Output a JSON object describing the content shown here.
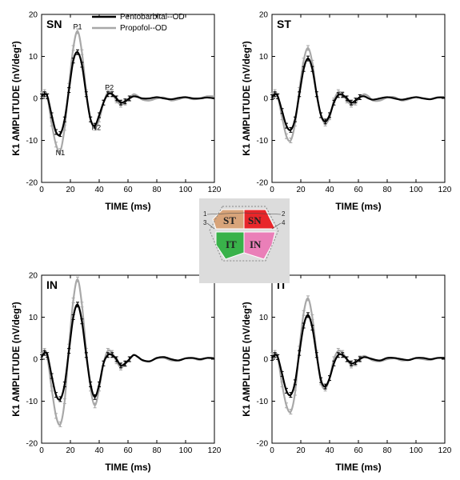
{
  "legend": {
    "entries": [
      {
        "name": "Pentobarbital--OD",
        "color": "#000000"
      },
      {
        "name": "Propofol--OD",
        "color": "#a8a8a8"
      }
    ]
  },
  "inset": {
    "regions": [
      {
        "label": "ST",
        "color": "#d8a47a"
      },
      {
        "label": "SN",
        "color": "#e8262a"
      },
      {
        "label": "IT",
        "color": "#39b24a"
      },
      {
        "label": "IN",
        "color": "#ea7fb8"
      }
    ],
    "numbers": [
      "1",
      "2",
      "3",
      "4"
    ]
  },
  "chart_data": [
    {
      "type": "line",
      "title": "SN",
      "xlabel": "TIME (ms)",
      "ylabel": "K1 AMPLITUDE (nV/deg²)",
      "xlim": [
        0,
        120
      ],
      "ylim": [
        -20,
        20
      ],
      "xticks": [
        "0",
        "20",
        "40",
        "60",
        "80",
        "100",
        "120"
      ],
      "yticks": [
        "-20",
        "-10",
        "0",
        "10",
        "20"
      ],
      "legend": "top-right",
      "annotations": [
        {
          "text": "P1",
          "x": 25,
          "y": 16.5
        },
        {
          "text": "N1",
          "x": 13,
          "y": -13.5
        },
        {
          "text": "N2",
          "x": 38,
          "y": -7.5
        },
        {
          "text": "P2",
          "x": 47,
          "y": 2
        }
      ],
      "x": [
        0,
        2,
        4,
        7,
        10,
        13,
        16,
        19,
        22,
        25,
        28,
        31,
        34,
        37,
        40,
        43,
        46,
        49,
        52,
        55,
        58,
        61,
        64,
        67,
        70,
        75,
        80,
        85,
        90,
        95,
        100,
        105,
        110,
        115,
        120
      ],
      "series": [
        {
          "name": "Pentobarbital--OD",
          "values": [
            0.5,
            1,
            0.5,
            -4,
            -8,
            -8.5,
            -5,
            2,
            9,
            11,
            8,
            1,
            -5,
            -6.5,
            -4,
            -1,
            1,
            1,
            0,
            -1,
            -0.7,
            0,
            0.5,
            0.3,
            0,
            0,
            0.3,
            0,
            -0.2,
            0.1,
            0.3,
            0,
            0,
            0.2,
            0
          ]
        },
        {
          "name": "Propofol--OD",
          "values": [
            1,
            1.5,
            0.5,
            -6,
            -11,
            -12.5,
            -7,
            3,
            12,
            16,
            11,
            1.5,
            -5,
            -7,
            -5,
            -1,
            1.5,
            1,
            -0.5,
            -1.5,
            -1,
            0,
            1,
            0.5,
            -0.3,
            -0.5,
            0,
            0.2,
            -0.5,
            -0.2,
            0.2,
            -0.2,
            0,
            0.5,
            0.5
          ]
        }
      ]
    },
    {
      "type": "line",
      "title": "ST",
      "xlabel": "TIME (ms)",
      "ylabel": "K1 AMPLITUDE (nV/deg²)",
      "xlim": [
        0,
        120
      ],
      "ylim": [
        -20,
        20
      ],
      "xticks": [
        "0",
        "20",
        "40",
        "60",
        "80",
        "100",
        "120"
      ],
      "yticks": [
        "-20",
        "-10",
        "0",
        "10",
        "20"
      ],
      "x": [
        0,
        2,
        4,
        7,
        10,
        13,
        16,
        19,
        22,
        25,
        28,
        31,
        34,
        37,
        40,
        43,
        46,
        49,
        52,
        55,
        58,
        61,
        64,
        67,
        70,
        75,
        80,
        85,
        90,
        95,
        100,
        105,
        110,
        115,
        120
      ],
      "series": [
        {
          "name": "Pentobarbital--OD",
          "values": [
            0.3,
            1,
            0.5,
            -3,
            -6.5,
            -7.5,
            -5,
            1,
            7,
            9.5,
            7,
            1,
            -4,
            -5.5,
            -4,
            -1,
            0.8,
            0.8,
            0,
            -1,
            -0.5,
            0.3,
            0.5,
            0,
            -0.3,
            0,
            0.3,
            0,
            -0.3,
            0,
            0.3,
            0,
            -0.2,
            0.2,
            0.2
          ]
        },
        {
          "name": "Propofol--OD",
          "values": [
            0.8,
            1.5,
            0.5,
            -4.5,
            -9,
            -10,
            -6,
            2,
            9,
            12,
            8.5,
            1,
            -4,
            -6,
            -4.5,
            -0.5,
            1.5,
            1,
            -0.5,
            -1.5,
            -1,
            0.3,
            1,
            0.5,
            -0.5,
            -0.5,
            0.2,
            0.3,
            -0.5,
            -0.2,
            0.3,
            0,
            -0.2,
            0.3,
            0.3
          ]
        }
      ]
    },
    {
      "type": "line",
      "title": "IN",
      "xlabel": "TIME (ms)",
      "ylabel": "K1 AMPLITUDE (nV/deg²)",
      "xlim": [
        0,
        120
      ],
      "ylim": [
        -20,
        20
      ],
      "xticks": [
        "0",
        "20",
        "40",
        "60",
        "80",
        "100",
        "120"
      ],
      "yticks": [
        "-20",
        "-10",
        "0",
        "10",
        "20"
      ],
      "x": [
        0,
        2,
        4,
        7,
        10,
        13,
        16,
        19,
        22,
        25,
        28,
        31,
        34,
        37,
        40,
        43,
        46,
        49,
        52,
        55,
        58,
        61,
        64,
        67,
        70,
        75,
        80,
        85,
        90,
        95,
        100,
        105,
        110,
        115,
        120
      ],
      "series": [
        {
          "name": "Pentobarbital--OD",
          "values": [
            0.5,
            1.5,
            1,
            -4,
            -8.5,
            -9.5,
            -6,
            2,
            10,
            13,
            9,
            1,
            -6,
            -9,
            -6,
            -1,
            1,
            1,
            0,
            -1.5,
            -1,
            0,
            1,
            0.5,
            -0.2,
            -0.5,
            0.3,
            0.5,
            0,
            -0.3,
            0.2,
            0.3,
            0,
            0.3,
            0.2
          ]
        },
        {
          "name": "Propofol--OD",
          "values": [
            1,
            2,
            0.5,
            -7,
            -13.5,
            -15.5,
            -10,
            3,
            14,
            19,
            13,
            2,
            -7,
            -11,
            -7,
            -1,
            2,
            1.5,
            -0.5,
            -2,
            -1.2,
            0,
            1,
            0.5,
            -0.3,
            -0.5,
            0.2,
            0.3,
            -0.3,
            -0.3,
            0.2,
            0.2,
            -0.2,
            0.3,
            0.3
          ]
        }
      ]
    },
    {
      "type": "line",
      "title": "IT",
      "xlabel": "TIME (ms)",
      "ylabel": "K1 AMPLITUDE (nV/deg²)",
      "xlim": [
        0,
        120
      ],
      "ylim": [
        -20,
        20
      ],
      "xticks": [
        "0",
        "20",
        "40",
        "60",
        "80",
        "100",
        "120"
      ],
      "yticks": [
        "-20",
        "-10",
        "0",
        "10",
        "20"
      ],
      "x": [
        0,
        2,
        4,
        7,
        10,
        13,
        16,
        19,
        22,
        25,
        28,
        31,
        34,
        37,
        40,
        43,
        46,
        49,
        52,
        55,
        58,
        61,
        64,
        67,
        70,
        75,
        80,
        85,
        90,
        95,
        100,
        105,
        110,
        115,
        120
      ],
      "series": [
        {
          "name": "Pentobarbital--OD",
          "values": [
            0.3,
            1,
            0.5,
            -3.5,
            -7.5,
            -8.5,
            -5.5,
            1.5,
            8,
            10.5,
            7.5,
            1,
            -5,
            -6.5,
            -4.5,
            -1,
            1,
            1,
            0,
            -1,
            -0.7,
            0,
            0.5,
            0.3,
            0,
            -0.3,
            0.3,
            0.3,
            0,
            -0.2,
            0.3,
            0.3,
            0,
            0.3,
            0.3
          ]
        },
        {
          "name": "Propofol--OD",
          "values": [
            1,
            1.5,
            0.5,
            -6,
            -11,
            -12.5,
            -8,
            2.5,
            11,
            14.5,
            10,
            1.5,
            -5.5,
            -7,
            -4.5,
            0,
            2,
            1.5,
            0,
            -1.5,
            -1,
            0.2,
            0.8,
            0.3,
            -0.3,
            -0.5,
            0,
            0.2,
            -0.3,
            -0.2,
            0.2,
            0,
            -0.2,
            0.3,
            0.3
          ]
        }
      ]
    }
  ]
}
